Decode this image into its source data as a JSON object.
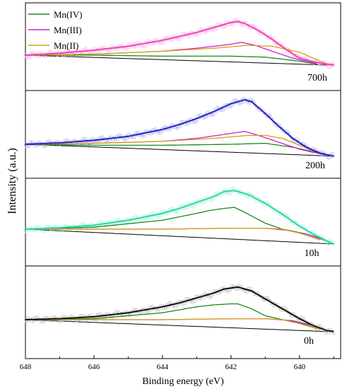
{
  "chart_data": {
    "type": "line",
    "title": "",
    "xlabel": "Binding energy (eV)",
    "ylabel": "Intensity (a.u.)",
    "xlim": [
      648,
      638.8
    ],
    "x_reversed": true,
    "x_ticks": [
      648,
      646,
      644,
      642,
      640
    ],
    "y_ticks_shown": false,
    "grid": false,
    "legend": {
      "placement": "top-left",
      "entries": [
        {
          "name": "Mn(IV)",
          "color": "#1a8a1a"
        },
        {
          "name": "Mn(III)",
          "color": "#cc22cc"
        },
        {
          "name": "Mn(II)",
          "color": "#d4a017"
        }
      ]
    },
    "panels": [
      {
        "label": "700h",
        "envelope_color": "#f044b4",
        "raw_color": "#f6a0d8",
        "baseline": {
          "x": [
            648,
            639.2
          ],
          "y": [
            0.0,
            -0.2
          ]
        },
        "envelope": {
          "x": [
            648,
            647,
            646,
            645,
            644,
            643.5,
            643,
            642.5,
            642,
            641.8,
            641.6,
            641.2,
            640.8,
            640.4,
            640,
            639.5,
            639.0
          ],
          "y": [
            0.0,
            0.04,
            0.1,
            0.18,
            0.3,
            0.38,
            0.46,
            0.56,
            0.66,
            0.68,
            0.64,
            0.5,
            0.32,
            0.12,
            -0.06,
            -0.15,
            -0.2
          ]
        },
        "components": [
          {
            "name": "Mn(IV)",
            "x": [
              648,
              646,
              644,
              642,
              641,
              640,
              639.5
            ],
            "y": [
              0.0,
              0.0,
              -0.02,
              -0.02,
              -0.04,
              -0.12,
              -0.18
            ]
          },
          {
            "name": "Mn(III)",
            "x": [
              648,
              646,
              644,
              643,
              642,
              641.7,
              641.3,
              640.8,
              640.2,
              639.5
            ],
            "y": [
              0.0,
              0.02,
              0.08,
              0.14,
              0.22,
              0.26,
              0.2,
              0.08,
              -0.06,
              -0.17
            ]
          },
          {
            "name": "Mn(II)",
            "x": [
              648,
              646,
              644,
              642.5,
              641.5,
              640.8,
              640.0,
              639.2
            ],
            "y": [
              0.0,
              0.02,
              0.08,
              0.14,
              0.2,
              0.18,
              0.06,
              -0.18
            ]
          }
        ]
      },
      {
        "label": "200h",
        "envelope_color": "#2222cc",
        "raw_color": "#9a9ae8",
        "baseline": {
          "x": [
            648,
            639.0
          ],
          "y": [
            0.0,
            -0.24
          ]
        },
        "envelope": {
          "x": [
            648,
            647,
            646,
            645,
            644,
            643.5,
            643,
            642.5,
            642,
            641.6,
            641.4,
            641.0,
            640.6,
            640.2,
            639.8,
            639.4,
            639.0
          ],
          "y": [
            0.0,
            0.03,
            0.08,
            0.16,
            0.3,
            0.4,
            0.52,
            0.66,
            0.82,
            0.9,
            0.86,
            0.62,
            0.36,
            0.12,
            -0.06,
            -0.18,
            -0.24
          ]
        },
        "components": [
          {
            "name": "Mn(IV)",
            "x": [
              648,
              646,
              644,
              642,
              641.0,
              640.2,
              639.4,
              639.0
            ],
            "y": [
              0.0,
              -0.02,
              -0.02,
              0.0,
              0.02,
              -0.06,
              -0.18,
              -0.24
            ]
          },
          {
            "name": "Mn(III)",
            "x": [
              648,
              646,
              644,
              643,
              642,
              641.6,
              641.2,
              640.6,
              640.0,
              639.2
            ],
            "y": [
              0.0,
              0.02,
              0.06,
              0.12,
              0.22,
              0.26,
              0.18,
              0.04,
              -0.1,
              -0.22
            ]
          },
          {
            "name": "Mn(II)",
            "x": [
              648,
              646,
              644,
              642.5,
              641.5,
              641.0,
              640.5,
              640.0,
              639.2
            ],
            "y": [
              0.0,
              0.02,
              0.06,
              0.12,
              0.18,
              0.18,
              0.12,
              -0.02,
              -0.22
            ]
          }
        ]
      },
      {
        "label": "10h",
        "envelope_color": "#22ddaa",
        "raw_color": "#99ecd2",
        "baseline": {
          "x": [
            648,
            639.0
          ],
          "y": [
            0.0,
            -0.3
          ]
        },
        "envelope": {
          "x": [
            648,
            647,
            646,
            645,
            644,
            643.5,
            643,
            642.5,
            642.2,
            641.9,
            641.5,
            641.0,
            640.5,
            640.0,
            639.6,
            639.2,
            639.0
          ],
          "y": [
            0.0,
            0.03,
            0.08,
            0.18,
            0.32,
            0.42,
            0.54,
            0.66,
            0.76,
            0.78,
            0.7,
            0.52,
            0.3,
            0.06,
            -0.1,
            -0.24,
            -0.3
          ]
        },
        "components": [
          {
            "name": "Mn(IV)",
            "x": [
              648,
              646,
              644,
              643,
              642.6,
              642.2,
              641.9,
              641.6,
              641.0,
              640.5,
              640.2,
              639.8,
              639.3
            ],
            "y": [
              0.0,
              0.04,
              0.18,
              0.32,
              0.38,
              0.42,
              0.44,
              0.34,
              0.12,
              0.0,
              -0.04,
              -0.1,
              -0.2
            ]
          },
          {
            "name": "Mn(III)",
            "x": [
              648,
              646,
              644,
              642,
              641,
              640.4,
              639.8,
              639.2
            ],
            "y": [
              0.0,
              0.0,
              0.0,
              0.02,
              0.02,
              -0.02,
              -0.1,
              -0.24
            ]
          },
          {
            "name": "Mn(II)",
            "x": [
              648,
              646,
              644,
              642,
              641,
              640.5,
              640.0,
              639.4
            ],
            "y": [
              0.0,
              0.0,
              0.0,
              0.02,
              0.02,
              0.0,
              -0.08,
              -0.22
            ]
          }
        ]
      },
      {
        "label": "0h",
        "envelope_color": "#111111",
        "raw_color": "#aaaaaa",
        "baseline": {
          "x": [
            648,
            639.2
          ],
          "y": [
            0.0,
            -0.24
          ]
        },
        "envelope": {
          "x": [
            648,
            647,
            646,
            645,
            644,
            643.5,
            643,
            642.5,
            642.2,
            641.8,
            641.4,
            641.0,
            640.5,
            640.0,
            639.6,
            639.2,
            639.0
          ],
          "y": [
            0.0,
            0.02,
            0.06,
            0.14,
            0.26,
            0.34,
            0.44,
            0.54,
            0.62,
            0.66,
            0.58,
            0.42,
            0.22,
            0.02,
            -0.12,
            -0.22,
            -0.24
          ]
        },
        "components": [
          {
            "name": "Mn(IV)",
            "x": [
              648,
              646,
              644,
              643,
              642.5,
              642.0,
              641.8,
              641.4,
              641.0,
              640.5,
              640.0,
              639.5
            ],
            "y": [
              0.0,
              0.02,
              0.14,
              0.26,
              0.3,
              0.32,
              0.32,
              0.22,
              0.08,
              0.0,
              -0.06,
              -0.18
            ]
          },
          {
            "name": "Mn(III)",
            "x": [
              648,
              646,
              644,
              642,
              641,
              640.2,
              639.6,
              639.2
            ],
            "y": [
              0.0,
              0.0,
              0.0,
              0.02,
              0.02,
              -0.02,
              -0.12,
              -0.22
            ]
          },
          {
            "name": "Mn(II)",
            "x": [
              648,
              646,
              644,
              642,
              641,
              640.5,
              640.0,
              639.4
            ],
            "y": [
              0.0,
              0.0,
              0.0,
              0.02,
              0.02,
              0.0,
              -0.08,
              -0.2
            ]
          }
        ]
      }
    ]
  }
}
